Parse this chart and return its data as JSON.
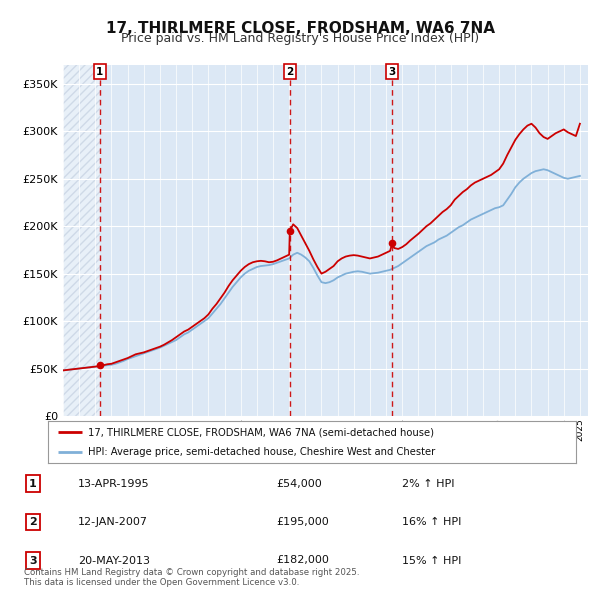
{
  "title": "17, THIRLMERE CLOSE, FRODSHAM, WA6 7NA",
  "subtitle": "Price paid vs. HM Land Registry's House Price Index (HPI)",
  "title_fontsize": 11,
  "subtitle_fontsize": 9,
  "background_color": "#ffffff",
  "plot_bg_color": "#dce8f5",
  "grid_color": "#ffffff",
  "ylim": [
    0,
    370000
  ],
  "yticks": [
    0,
    50000,
    100000,
    150000,
    200000,
    250000,
    300000,
    350000
  ],
  "ytick_labels": [
    "£0",
    "£50K",
    "£100K",
    "£150K",
    "£200K",
    "£250K",
    "£300K",
    "£350K"
  ],
  "xlim_start": 1993.0,
  "xlim_end": 2025.5,
  "transaction_dates": [
    1995.28,
    2007.04,
    2013.38
  ],
  "transaction_prices": [
    54000,
    195000,
    182000
  ],
  "transaction_labels": [
    "1",
    "2",
    "3"
  ],
  "transaction_date_strs": [
    "13-APR-1995",
    "12-JAN-2007",
    "20-MAY-2013"
  ],
  "transaction_price_strs": [
    "£54,000",
    "£195,000",
    "£182,000"
  ],
  "transaction_hpi_strs": [
    "2% ↑ HPI",
    "16% ↑ HPI",
    "15% ↑ HPI"
  ],
  "red_color": "#cc0000",
  "blue_line_color": "#80b0d8",
  "legend_line1": "17, THIRLMERE CLOSE, FRODSHAM, WA6 7NA (semi-detached house)",
  "legend_line2": "HPI: Average price, semi-detached house, Cheshire West and Chester",
  "footer_text": "Contains HM Land Registry data © Crown copyright and database right 2025.\nThis data is licensed under the Open Government Licence v3.0.",
  "hpi_x": [
    1993.0,
    1993.25,
    1993.5,
    1993.75,
    1994.0,
    1994.25,
    1994.5,
    1994.75,
    1995.0,
    1995.25,
    1995.5,
    1995.75,
    1996.0,
    1996.25,
    1996.5,
    1996.75,
    1997.0,
    1997.25,
    1997.5,
    1997.75,
    1998.0,
    1998.25,
    1998.5,
    1998.75,
    1999.0,
    1999.25,
    1999.5,
    1999.75,
    2000.0,
    2000.25,
    2000.5,
    2000.75,
    2001.0,
    2001.25,
    2001.5,
    2001.75,
    2002.0,
    2002.25,
    2002.5,
    2002.75,
    2003.0,
    2003.25,
    2003.5,
    2003.75,
    2004.0,
    2004.25,
    2004.5,
    2004.75,
    2005.0,
    2005.25,
    2005.5,
    2005.75,
    2006.0,
    2006.25,
    2006.5,
    2006.75,
    2007.0,
    2007.25,
    2007.5,
    2007.75,
    2008.0,
    2008.25,
    2008.5,
    2008.75,
    2009.0,
    2009.25,
    2009.5,
    2009.75,
    2010.0,
    2010.25,
    2010.5,
    2010.75,
    2011.0,
    2011.25,
    2011.5,
    2011.75,
    2012.0,
    2012.25,
    2012.5,
    2012.75,
    2013.0,
    2013.25,
    2013.5,
    2013.75,
    2014.0,
    2014.25,
    2014.5,
    2014.75,
    2015.0,
    2015.25,
    2015.5,
    2015.75,
    2016.0,
    2016.25,
    2016.5,
    2016.75,
    2017.0,
    2017.25,
    2017.5,
    2017.75,
    2018.0,
    2018.25,
    2018.5,
    2018.75,
    2019.0,
    2019.25,
    2019.5,
    2019.75,
    2020.0,
    2020.25,
    2020.5,
    2020.75,
    2021.0,
    2021.25,
    2021.5,
    2021.75,
    2022.0,
    2022.25,
    2022.5,
    2022.75,
    2023.0,
    2023.25,
    2023.5,
    2023.75,
    2024.0,
    2024.25,
    2024.5,
    2024.75,
    2025.0
  ],
  "hpi_y": [
    48000,
    48500,
    49000,
    49500,
    50000,
    50500,
    51000,
    51500,
    52000,
    52500,
    53000,
    53500,
    54000,
    55000,
    56500,
    58000,
    60000,
    61500,
    63000,
    64500,
    66000,
    67500,
    69000,
    70500,
    72000,
    74000,
    76000,
    78000,
    80000,
    83000,
    86000,
    88000,
    91000,
    94000,
    97000,
    100000,
    103000,
    108000,
    113000,
    118000,
    124000,
    130000,
    136000,
    141000,
    146000,
    150000,
    153000,
    155000,
    157000,
    158000,
    158500,
    159000,
    160000,
    161500,
    163000,
    164500,
    166000,
    170000,
    172000,
    170000,
    167000,
    163000,
    156000,
    148000,
    141000,
    140000,
    141000,
    143000,
    146000,
    148000,
    150000,
    151000,
    152000,
    152500,
    152000,
    151000,
    150000,
    150500,
    151000,
    152000,
    153000,
    154000,
    156000,
    158000,
    161000,
    164000,
    167000,
    170000,
    173000,
    176000,
    179000,
    181000,
    183000,
    186000,
    188000,
    190000,
    193000,
    196000,
    199000,
    201000,
    204000,
    207000,
    209000,
    211000,
    213000,
    215000,
    217000,
    219000,
    220000,
    222000,
    228000,
    234000,
    241000,
    246000,
    250000,
    253000,
    256000,
    258000,
    259000,
    260000,
    259000,
    257000,
    255000,
    253000,
    251000,
    250000,
    251000,
    252000,
    253000
  ],
  "price_x": [
    1993.0,
    1993.25,
    1993.5,
    1993.75,
    1994.0,
    1994.25,
    1994.5,
    1994.75,
    1995.0,
    1995.25,
    1995.28,
    1995.5,
    1995.75,
    1996.0,
    1996.25,
    1996.5,
    1996.75,
    1997.0,
    1997.25,
    1997.5,
    1997.75,
    1998.0,
    1998.25,
    1998.5,
    1998.75,
    1999.0,
    1999.25,
    1999.5,
    1999.75,
    2000.0,
    2000.25,
    2000.5,
    2000.75,
    2001.0,
    2001.25,
    2001.5,
    2001.75,
    2002.0,
    2002.25,
    2002.5,
    2002.75,
    2003.0,
    2003.25,
    2003.5,
    2003.75,
    2004.0,
    2004.25,
    2004.5,
    2004.75,
    2005.0,
    2005.25,
    2005.5,
    2005.75,
    2006.0,
    2006.25,
    2006.5,
    2006.75,
    2007.0,
    2007.04,
    2007.25,
    2007.5,
    2007.75,
    2008.0,
    2008.25,
    2008.5,
    2008.75,
    2009.0,
    2009.25,
    2009.5,
    2009.75,
    2010.0,
    2010.25,
    2010.5,
    2010.75,
    2011.0,
    2011.25,
    2011.5,
    2011.75,
    2012.0,
    2012.25,
    2012.5,
    2012.75,
    2013.0,
    2013.25,
    2013.38,
    2013.5,
    2013.75,
    2014.0,
    2014.25,
    2014.5,
    2014.75,
    2015.0,
    2015.25,
    2015.5,
    2015.75,
    2016.0,
    2016.25,
    2016.5,
    2016.75,
    2017.0,
    2017.25,
    2017.5,
    2017.75,
    2018.0,
    2018.25,
    2018.5,
    2018.75,
    2019.0,
    2019.25,
    2019.5,
    2019.75,
    2020.0,
    2020.25,
    2020.5,
    2020.75,
    2021.0,
    2021.25,
    2021.5,
    2021.75,
    2022.0,
    2022.25,
    2022.5,
    2022.75,
    2023.0,
    2023.25,
    2023.5,
    2023.75,
    2024.0,
    2024.25,
    2024.5,
    2024.75,
    2025.0
  ],
  "price_y": [
    48000,
    48500,
    49000,
    49500,
    50000,
    50500,
    51000,
    51500,
    52000,
    52500,
    54000,
    53500,
    54500,
    55000,
    56500,
    58000,
    59500,
    61000,
    63000,
    65000,
    66000,
    67000,
    68500,
    70000,
    71500,
    73000,
    75000,
    77500,
    80000,
    83000,
    86000,
    89000,
    91000,
    94000,
    97000,
    100000,
    103000,
    107000,
    113000,
    118000,
    124000,
    130000,
    137000,
    143000,
    148000,
    153000,
    157000,
    160000,
    162000,
    163000,
    163500,
    163000,
    162000,
    162500,
    164000,
    166000,
    168000,
    170000,
    195000,
    202000,
    198000,
    190000,
    182000,
    174000,
    165000,
    157000,
    150000,
    152000,
    155000,
    158000,
    163000,
    166000,
    168000,
    169000,
    169500,
    169000,
    168000,
    167000,
    166000,
    167000,
    168000,
    170000,
    172000,
    174000,
    182000,
    177000,
    176000,
    178000,
    181000,
    185000,
    188500,
    192000,
    196000,
    200000,
    203000,
    207000,
    211000,
    215000,
    218000,
    222000,
    228000,
    232000,
    236000,
    239000,
    243000,
    246000,
    248000,
    250000,
    252000,
    254000,
    257000,
    260000,
    266000,
    275000,
    283000,
    291000,
    297000,
    302000,
    306000,
    308000,
    304000,
    298000,
    294000,
    292000,
    295000,
    298000,
    300000,
    302000,
    299000,
    297000,
    295000,
    308000
  ]
}
